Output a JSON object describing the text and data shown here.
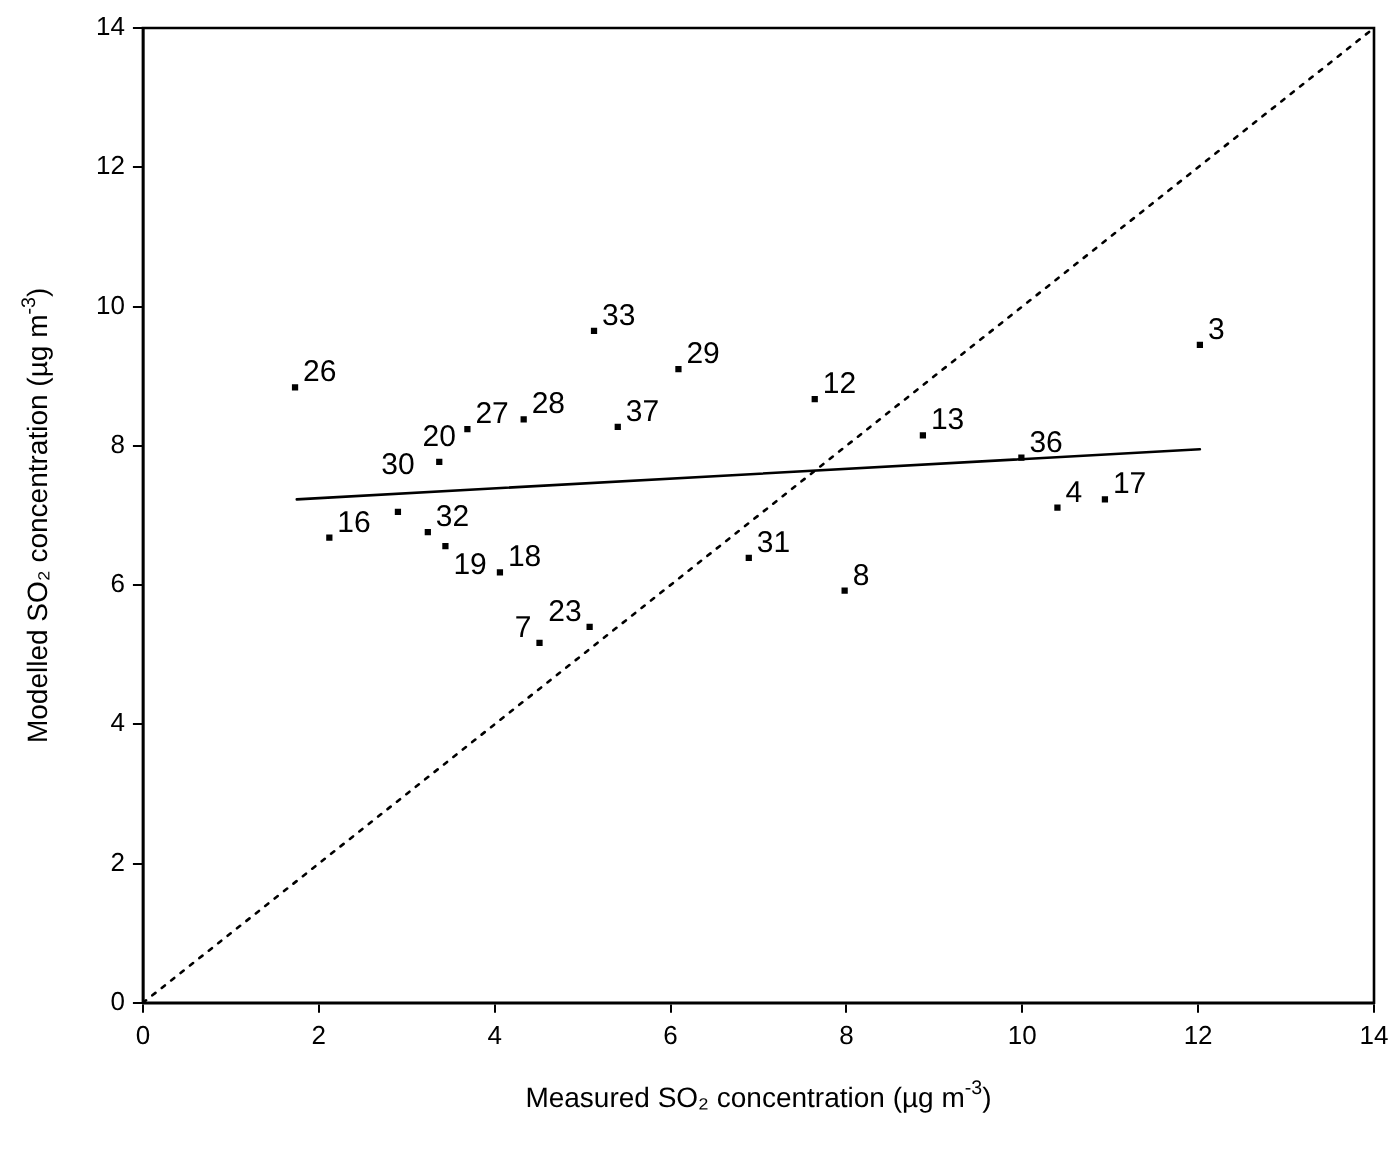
{
  "chart_data": {
    "type": "scatter",
    "xlabel": "Measured SO₂ concentration (µg m$^{-3}$)",
    "ylabel": "Modelled SO₂ concentration (µg m$^{-3}$)",
    "xlim": [
      0,
      14
    ],
    "xticks": [
      0,
      2,
      4,
      6,
      8,
      10,
      12,
      14
    ],
    "ylim": [
      0,
      14
    ],
    "yticks": [
      0,
      2,
      4,
      6,
      8,
      10,
      12,
      14
    ],
    "grid": false,
    "legend": false,
    "series": [
      {
        "color": "#000000",
        "marker": "square",
        "x": [
          1.73,
          2.12,
          2.9,
          3.37,
          3.24,
          3.44,
          4.06,
          3.69,
          4.33,
          5.13,
          5.4,
          6.09,
          5.08,
          4.51,
          6.89,
          7.98,
          7.64,
          8.87,
          9.99,
          10.4,
          10.94,
          12.02
        ],
        "values": [
          8.84,
          6.68,
          7.05,
          7.77,
          6.76,
          6.56,
          6.18,
          8.24,
          8.38,
          9.65,
          8.27,
          9.1,
          5.4,
          5.17,
          6.39,
          5.92,
          8.67,
          8.15,
          7.83,
          7.11,
          7.23,
          9.45
        ]
      },
      {
        "type": "line",
        "color": "#000000",
        "line_style": "solid",
        "x": [
          1.75,
          12.02
        ],
        "values": [
          7.23,
          7.95
        ]
      },
      {
        "type": "line",
        "color": "#000000",
        "line_style": "dotted",
        "x": [
          0,
          14
        ],
        "values": [
          0,
          14
        ]
      }
    ],
    "annotations": [
      {
        "text": "26",
        "x": 1.73,
        "y": 8.84
      },
      {
        "text": "16",
        "x": 2.12,
        "y": 6.68
      },
      {
        "text": "30",
        "x": 2.9,
        "y": 7.05
      },
      {
        "text": "20",
        "x": 3.37,
        "y": 7.77
      },
      {
        "text": "32",
        "x": 3.24,
        "y": 6.76
      },
      {
        "text": "19",
        "x": 3.44,
        "y": 6.56
      },
      {
        "text": "18",
        "x": 4.06,
        "y": 6.18
      },
      {
        "text": "27",
        "x": 3.69,
        "y": 8.24
      },
      {
        "text": "28",
        "x": 4.33,
        "y": 8.38
      },
      {
        "text": "33",
        "x": 5.13,
        "y": 9.65
      },
      {
        "text": "37",
        "x": 5.4,
        "y": 8.27
      },
      {
        "text": "29",
        "x": 6.09,
        "y": 9.1
      },
      {
        "text": "23",
        "x": 5.08,
        "y": 5.4
      },
      {
        "text": "7",
        "x": 4.51,
        "y": 5.17
      },
      {
        "text": "31",
        "x": 6.89,
        "y": 6.39
      },
      {
        "text": "8",
        "x": 7.98,
        "y": 5.92
      },
      {
        "text": "12",
        "x": 7.64,
        "y": 8.67
      },
      {
        "text": "13",
        "x": 8.87,
        "y": 8.15
      },
      {
        "text": "36",
        "x": 9.99,
        "y": 7.83
      },
      {
        "text": "4",
        "x": 10.4,
        "y": 7.11
      },
      {
        "text": "17",
        "x": 10.94,
        "y": 7.23
      },
      {
        "text": "3",
        "x": 12.02,
        "y": 9.45
      }
    ]
  }
}
